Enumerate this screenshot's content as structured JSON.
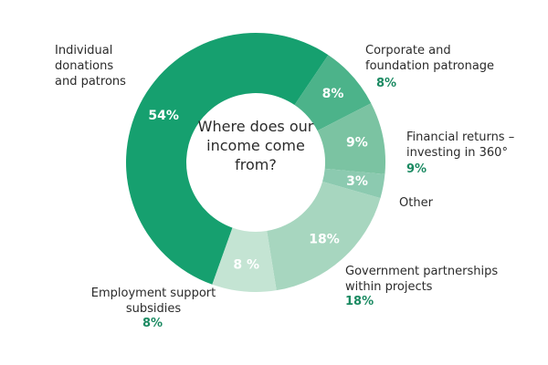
{
  "chart_data": {
    "type": "donut",
    "title": "Where does our income come from?",
    "categories": [
      "Individual donations and patrons",
      "Corporate and foundation patronage",
      "Financial returns – investing in 360°",
      "Other",
      "Government partnerships within projects",
      "Employment support subsidies"
    ],
    "values": [
      54,
      8,
      9,
      3,
      18,
      8
    ],
    "value_labels": [
      "54%",
      "8%",
      "9%",
      "3%",
      "18%",
      "8 %"
    ],
    "outer_value_labels": [
      null,
      "8%",
      "9%",
      null,
      "18%",
      "8%"
    ],
    "colors": [
      "#16a06f",
      "#4cb38a",
      "#7bc3a2",
      "#8ccab0",
      "#a7d6bf",
      "#c4e4d3"
    ]
  }
}
